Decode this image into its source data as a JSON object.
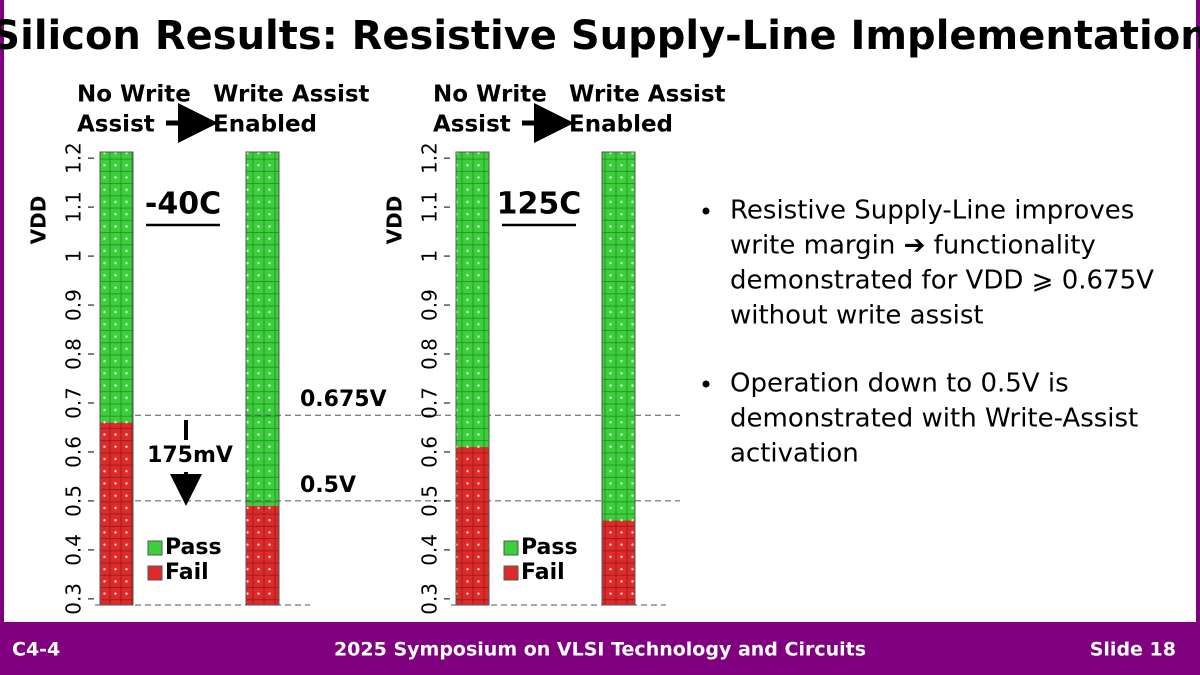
{
  "title": "Silicon Results: Resistive Supply-Line Implementation",
  "chart_data": [
    {
      "type": "shmoo",
      "label": "-40C",
      "y_label": "VDD",
      "header_left": [
        "No Write",
        "Assist"
      ],
      "header_right": [
        "Write Assist",
        "Enabled"
      ],
      "ylim": [
        0.2875,
        1.2125
      ],
      "yticks": [
        0.3,
        0.4,
        0.5,
        0.6,
        0.7,
        0.8,
        0.9,
        1,
        1.1,
        1.2
      ],
      "values": [
        0.66,
        0.49
      ],
      "pass_color": "#3ccf3c",
      "fail_color": "#dd2a2a",
      "legend": [
        "Pass",
        "Fail"
      ],
      "ref_lines": [
        {
          "value": 0.675,
          "label": "0.675V"
        },
        {
          "value": 0.5,
          "label": "0.5V"
        }
      ],
      "annotation": "175mV"
    },
    {
      "type": "shmoo",
      "label": "125C",
      "y_label": "VDD",
      "header_left": [
        "No Write",
        "Assist"
      ],
      "header_right": [
        "Write Assist",
        "Enabled"
      ],
      "ylim": [
        0.2875,
        1.2125
      ],
      "yticks": [
        0.3,
        0.4,
        0.5,
        0.6,
        0.7,
        0.8,
        0.9,
        1,
        1.1,
        1.2
      ],
      "values": [
        0.61,
        0.46
      ],
      "pass_color": "#3ccf3c",
      "fail_color": "#dd2a2a",
      "legend": [
        "Pass",
        "Fail"
      ]
    }
  ],
  "bullets": [
    [
      "Resistive Supply-Line improves",
      "write margin ➔ functionality",
      "demonstrated for VDD ⩾ 0.675V",
      "without write assist"
    ],
    [
      "Operation down to 0.5V is",
      "demonstrated with Write-Assist",
      "activation"
    ]
  ],
  "footer": {
    "left": "C4-4",
    "center": "2025 Symposium on VLSI Technology and Circuits",
    "right": "Slide 18"
  }
}
